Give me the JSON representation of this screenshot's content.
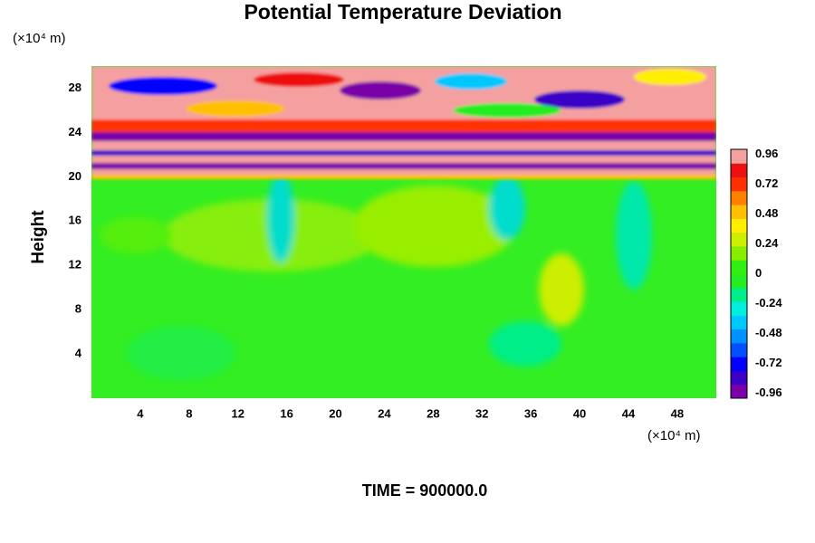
{
  "chart_data": {
    "type": "heatmap",
    "title": "Potential Temperature Deviation",
    "ylabel": "Height",
    "x_unit": "(×10⁴ m)",
    "y_unit": "(×10⁴ m)",
    "annotation": "TIME = 900000.0",
    "xlim": [
      0,
      51.2
    ],
    "xticks": [
      4,
      8,
      12,
      16,
      20,
      24,
      28,
      32,
      36,
      40,
      44,
      48
    ],
    "ylim": [
      0,
      30
    ],
    "yticks": [
      4,
      8,
      12,
      16,
      20,
      24,
      28
    ],
    "clim": [
      -1,
      1
    ],
    "cticks": [
      0.96,
      0.72,
      0.48,
      0.24,
      0,
      -0.24,
      -0.48,
      -0.72,
      -0.96
    ],
    "colors": [
      "#7a00a8",
      "#3a00c8",
      "#0000ff",
      "#0050ff",
      "#0090ff",
      "#00c8ff",
      "#00eedd",
      "#00ee88",
      "#22ee22",
      "#33ee11",
      "#88ee00",
      "#ccee00",
      "#ffee00",
      "#ffc000",
      "#ff8000",
      "#ff3000",
      "#ee1010",
      "#f4a0a0"
    ]
  }
}
